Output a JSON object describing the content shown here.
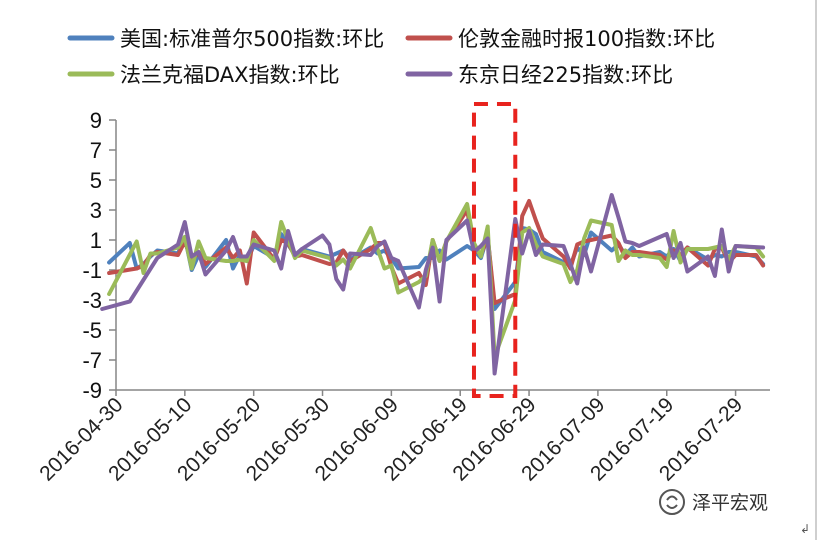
{
  "chart_data": {
    "type": "line",
    "title": "",
    "xlabel": "",
    "ylabel": "",
    "ylim": [
      -9,
      9
    ],
    "yticks": [
      9,
      7,
      5,
      3,
      1,
      -1,
      -3,
      -5,
      -7,
      -9
    ],
    "xlim": [
      "2016-04-30",
      "2016-08-03"
    ],
    "xticks": [
      "2016-04-30",
      "2016-05-10",
      "2016-05-20",
      "2016-05-30",
      "2016-06-09",
      "2016-06-19",
      "2016-06-29",
      "2016-07-09",
      "2016-07-19",
      "2016-07-29"
    ],
    "grid": false,
    "legend_position": "top",
    "highlight": {
      "x_range": [
        "2016-06-21",
        "2016-06-27"
      ],
      "style": "red dashed box"
    },
    "series": [
      {
        "name": "美国:标准普尔500指数:环比",
        "color": "#4F81BD",
        "points": [
          [
            "2016-04-29",
            -0.5
          ],
          [
            "2016-05-02",
            0.8
          ],
          [
            "2016-05-03",
            -0.9
          ],
          [
            "2016-05-04",
            -0.6
          ],
          [
            "2016-05-05",
            -0.1
          ],
          [
            "2016-05-06",
            0.3
          ],
          [
            "2016-05-09",
            0.1
          ],
          [
            "2016-05-10",
            1.2
          ],
          [
            "2016-05-11",
            -1.0
          ],
          [
            "2016-05-12",
            0.0
          ],
          [
            "2016-05-13",
            -0.8
          ],
          [
            "2016-05-16",
            1.0
          ],
          [
            "2016-05-17",
            -0.9
          ],
          [
            "2016-05-18",
            0.0
          ],
          [
            "2016-05-19",
            -0.4
          ],
          [
            "2016-05-20",
            0.6
          ],
          [
            "2016-05-23",
            -0.2
          ],
          [
            "2016-05-24",
            1.4
          ],
          [
            "2016-05-25",
            0.7
          ],
          [
            "2016-05-26",
            0.0
          ],
          [
            "2016-05-27",
            0.4
          ],
          [
            "2016-05-31",
            -0.1
          ],
          [
            "2016-06-01",
            0.1
          ],
          [
            "2016-06-02",
            0.3
          ],
          [
            "2016-06-03",
            -0.3
          ],
          [
            "2016-06-06",
            0.5
          ],
          [
            "2016-06-07",
            0.1
          ],
          [
            "2016-06-08",
            0.3
          ],
          [
            "2016-06-09",
            -0.2
          ],
          [
            "2016-06-10",
            -0.9
          ],
          [
            "2016-06-13",
            -0.8
          ],
          [
            "2016-06-14",
            -0.2
          ],
          [
            "2016-06-15",
            -0.2
          ],
          [
            "2016-06-16",
            0.3
          ],
          [
            "2016-06-17",
            -0.3
          ],
          [
            "2016-06-20",
            0.6
          ],
          [
            "2016-06-21",
            0.3
          ],
          [
            "2016-06-22",
            -0.2
          ],
          [
            "2016-06-23",
            1.3
          ],
          [
            "2016-06-24",
            -3.6
          ],
          [
            "2016-06-27",
            -1.8
          ],
          [
            "2016-06-28",
            1.8
          ],
          [
            "2016-06-29",
            1.7
          ],
          [
            "2016-06-30",
            1.4
          ],
          [
            "2016-07-01",
            0.2
          ],
          [
            "2016-07-05",
            -0.7
          ],
          [
            "2016-07-06",
            0.5
          ],
          [
            "2016-07-07",
            0.0
          ],
          [
            "2016-07-08",
            1.5
          ],
          [
            "2016-07-11",
            0.3
          ],
          [
            "2016-07-12",
            0.7
          ],
          [
            "2016-07-13",
            0.0
          ],
          [
            "2016-07-14",
            0.5
          ],
          [
            "2016-07-15",
            -0.1
          ],
          [
            "2016-07-18",
            0.2
          ],
          [
            "2016-07-19",
            -0.1
          ],
          [
            "2016-07-20",
            0.4
          ],
          [
            "2016-07-21",
            -0.4
          ],
          [
            "2016-07-22",
            0.5
          ],
          [
            "2016-07-25",
            -0.3
          ],
          [
            "2016-07-26",
            0.0
          ],
          [
            "2016-07-27",
            -0.1
          ],
          [
            "2016-07-28",
            0.2
          ],
          [
            "2016-07-29",
            0.2
          ],
          [
            "2016-08-01",
            -0.1
          ],
          [
            "2016-08-02",
            -0.6
          ]
        ]
      },
      {
        "name": "伦敦金融时报100指数:环比",
        "color": "#C0504D",
        "points": [
          [
            "2016-04-29",
            -1.2
          ],
          [
            "2016-05-03",
            -0.9
          ],
          [
            "2016-05-04",
            -0.7
          ],
          [
            "2016-05-05",
            0.0
          ],
          [
            "2016-05-06",
            0.2
          ],
          [
            "2016-05-09",
            0.0
          ],
          [
            "2016-05-10",
            0.9
          ],
          [
            "2016-05-11",
            -0.4
          ],
          [
            "2016-05-12",
            0.2
          ],
          [
            "2016-05-13",
            -0.6
          ],
          [
            "2016-05-16",
            0.5
          ],
          [
            "2016-05-17",
            -0.2
          ],
          [
            "2016-05-18",
            0.3
          ],
          [
            "2016-05-19",
            -1.9
          ],
          [
            "2016-05-20",
            1.5
          ],
          [
            "2016-05-23",
            -0.3
          ],
          [
            "2016-05-24",
            1.0
          ],
          [
            "2016-05-25",
            0.8
          ],
          [
            "2016-05-26",
            -0.1
          ],
          [
            "2016-05-27",
            0.0
          ],
          [
            "2016-05-31",
            -0.6
          ],
          [
            "2016-06-01",
            -0.5
          ],
          [
            "2016-06-02",
            0.3
          ],
          [
            "2016-06-03",
            -0.4
          ],
          [
            "2016-06-06",
            0.4
          ],
          [
            "2016-06-07",
            0.8
          ],
          [
            "2016-06-08",
            0.8
          ],
          [
            "2016-06-09",
            -0.8
          ],
          [
            "2016-06-10",
            -1.9
          ],
          [
            "2016-06-13",
            -1.2
          ],
          [
            "2016-06-14",
            -2.0
          ],
          [
            "2016-06-15",
            1.0
          ],
          [
            "2016-06-16",
            -0.4
          ],
          [
            "2016-06-17",
            0.9
          ],
          [
            "2016-06-20",
            3.0
          ],
          [
            "2016-06-21",
            0.4
          ],
          [
            "2016-06-22",
            0.0
          ],
          [
            "2016-06-23",
            1.2
          ],
          [
            "2016-06-24",
            -3.2
          ],
          [
            "2016-06-27",
            -2.6
          ],
          [
            "2016-06-28",
            2.6
          ],
          [
            "2016-06-29",
            3.6
          ],
          [
            "2016-06-30",
            2.3
          ],
          [
            "2016-07-01",
            1.1
          ],
          [
            "2016-07-04",
            -0.1
          ],
          [
            "2016-07-05",
            -0.9
          ],
          [
            "2016-07-06",
            0.7
          ],
          [
            "2016-07-07",
            0.9
          ],
          [
            "2016-07-08",
            1.0
          ],
          [
            "2016-07-11",
            1.3
          ],
          [
            "2016-07-12",
            0.8
          ],
          [
            "2016-07-13",
            -0.2
          ],
          [
            "2016-07-14",
            0.2
          ],
          [
            "2016-07-15",
            0.2
          ],
          [
            "2016-07-18",
            0.0
          ],
          [
            "2016-07-19",
            -0.3
          ],
          [
            "2016-07-20",
            0.3
          ],
          [
            "2016-07-21",
            0.0
          ],
          [
            "2016-07-22",
            0.5
          ],
          [
            "2016-07-25",
            -0.7
          ],
          [
            "2016-07-26",
            0.4
          ],
          [
            "2016-07-27",
            0.5
          ],
          [
            "2016-07-28",
            -0.5
          ],
          [
            "2016-07-29",
            0.0
          ],
          [
            "2016-08-01",
            0.0
          ],
          [
            "2016-08-02",
            -0.7
          ]
        ]
      },
      {
        "name": "法兰克福DAX指数:环比",
        "color": "#9BBB59",
        "points": [
          [
            "2016-04-29",
            -2.6
          ],
          [
            "2016-05-03",
            0.9
          ],
          [
            "2016-05-04",
            -1.2
          ],
          [
            "2016-05-05",
            0.1
          ],
          [
            "2016-05-06",
            0.1
          ],
          [
            "2016-05-09",
            0.5
          ],
          [
            "2016-05-10",
            1.2
          ],
          [
            "2016-05-11",
            -0.9
          ],
          [
            "2016-05-12",
            0.9
          ],
          [
            "2016-05-13",
            -0.2
          ],
          [
            "2016-05-16",
            -0.4
          ],
          [
            "2016-05-17",
            -0.4
          ],
          [
            "2016-05-18",
            -0.3
          ],
          [
            "2016-05-19",
            -0.4
          ],
          [
            "2016-05-20",
            1.0
          ],
          [
            "2016-05-23",
            -0.4
          ],
          [
            "2016-05-24",
            2.2
          ],
          [
            "2016-05-25",
            1.0
          ],
          [
            "2016-05-26",
            -0.2
          ],
          [
            "2016-05-27",
            0.3
          ],
          [
            "2016-05-31",
            -0.2
          ],
          [
            "2016-06-01",
            -0.7
          ],
          [
            "2016-06-02",
            -0.3
          ],
          [
            "2016-06-03",
            -0.9
          ],
          [
            "2016-06-06",
            1.8
          ],
          [
            "2016-06-07",
            0.4
          ],
          [
            "2016-06-08",
            -0.9
          ],
          [
            "2016-06-09",
            -0.7
          ],
          [
            "2016-06-10",
            -2.5
          ],
          [
            "2016-06-13",
            -1.8
          ],
          [
            "2016-06-14",
            -1.4
          ],
          [
            "2016-06-15",
            1.0
          ],
          [
            "2016-06-16",
            -0.4
          ],
          [
            "2016-06-17",
            0.9
          ],
          [
            "2016-06-20",
            3.4
          ],
          [
            "2016-06-21",
            0.8
          ],
          [
            "2016-06-22",
            -0.1
          ],
          [
            "2016-06-23",
            1.9
          ],
          [
            "2016-06-24",
            -6.8
          ],
          [
            "2016-06-27",
            -3.0
          ],
          [
            "2016-06-28",
            1.5
          ],
          [
            "2016-06-29",
            1.8
          ],
          [
            "2016-06-30",
            0.7
          ],
          [
            "2016-07-01",
            -0.1
          ],
          [
            "2016-07-04",
            -0.6
          ],
          [
            "2016-07-05",
            -1.8
          ],
          [
            "2016-07-06",
            -1.0
          ],
          [
            "2016-07-07",
            1.1
          ],
          [
            "2016-07-08",
            2.3
          ],
          [
            "2016-07-11",
            2.0
          ],
          [
            "2016-07-12",
            -0.4
          ],
          [
            "2016-07-13",
            0.3
          ],
          [
            "2016-07-14",
            0.0
          ],
          [
            "2016-07-15",
            0.0
          ],
          [
            "2016-07-18",
            -0.2
          ],
          [
            "2016-07-19",
            -0.8
          ],
          [
            "2016-07-20",
            1.6
          ],
          [
            "2016-07-21",
            -0.5
          ],
          [
            "2016-07-22",
            0.4
          ],
          [
            "2016-07-25",
            0.4
          ],
          [
            "2016-07-26",
            0.5
          ],
          [
            "2016-07-27",
            0.6
          ],
          [
            "2016-07-28",
            -0.3
          ],
          [
            "2016-07-29",
            0.6
          ],
          [
            "2016-08-01",
            0.5
          ],
          [
            "2016-08-02",
            -0.1
          ]
        ]
      },
      {
        "name": "东京日经225指数:环比",
        "color": "#8064A2",
        "points": [
          [
            "2016-04-28",
            -3.6
          ],
          [
            "2016-05-02",
            -3.1
          ],
          [
            "2016-05-06",
            -0.2
          ],
          [
            "2016-05-09",
            0.7
          ],
          [
            "2016-05-10",
            2.2
          ],
          [
            "2016-05-11",
            -0.1
          ],
          [
            "2016-05-12",
            0.2
          ],
          [
            "2016-05-13",
            -1.3
          ],
          [
            "2016-05-16",
            0.3
          ],
          [
            "2016-05-17",
            1.2
          ],
          [
            "2016-05-18",
            -0.1
          ],
          [
            "2016-05-19",
            -0.1
          ],
          [
            "2016-05-20",
            0.7
          ],
          [
            "2016-05-23",
            0.3
          ],
          [
            "2016-05-24",
            -0.9
          ],
          [
            "2016-05-25",
            1.6
          ],
          [
            "2016-05-26",
            0.0
          ],
          [
            "2016-05-27",
            0.4
          ],
          [
            "2016-05-30",
            1.3
          ],
          [
            "2016-05-31",
            0.7
          ],
          [
            "2016-06-01",
            -1.6
          ],
          [
            "2016-06-02",
            -2.3
          ],
          [
            "2016-06-03",
            0.1
          ],
          [
            "2016-06-06",
            0.0
          ],
          [
            "2016-06-07",
            0.6
          ],
          [
            "2016-06-08",
            0.9
          ],
          [
            "2016-06-09",
            -0.2
          ],
          [
            "2016-06-10",
            -0.4
          ],
          [
            "2016-06-13",
            -3.5
          ],
          [
            "2016-06-14",
            -1.0
          ],
          [
            "2016-06-15",
            0.5
          ],
          [
            "2016-06-16",
            -3.1
          ],
          [
            "2016-06-17",
            1.0
          ],
          [
            "2016-06-20",
            2.3
          ],
          [
            "2016-06-21",
            0.2
          ],
          [
            "2016-06-22",
            0.6
          ],
          [
            "2016-06-23",
            1.1
          ],
          [
            "2016-06-24",
            -7.9
          ],
          [
            "2016-06-27",
            2.4
          ],
          [
            "2016-06-28",
            0.1
          ],
          [
            "2016-06-29",
            1.6
          ],
          [
            "2016-06-30",
            0.0
          ],
          [
            "2016-07-01",
            0.7
          ],
          [
            "2016-07-04",
            0.6
          ],
          [
            "2016-07-05",
            -0.6
          ],
          [
            "2016-07-06",
            -1.9
          ],
          [
            "2016-07-07",
            0.5
          ],
          [
            "2016-07-08",
            -1.1
          ],
          [
            "2016-07-11",
            4.0
          ],
          [
            "2016-07-12",
            2.5
          ],
          [
            "2016-07-13",
            0.9
          ],
          [
            "2016-07-14",
            0.8
          ],
          [
            "2016-07-15",
            0.6
          ],
          [
            "2016-07-19",
            1.4
          ],
          [
            "2016-07-20",
            -0.2
          ],
          [
            "2016-07-21",
            0.8
          ],
          [
            "2016-07-22",
            -1.1
          ],
          [
            "2016-07-25",
            -0.1
          ],
          [
            "2016-07-26",
            -1.4
          ],
          [
            "2016-07-27",
            1.7
          ],
          [
            "2016-07-28",
            -1.1
          ],
          [
            "2016-07-29",
            0.6
          ],
          [
            "2016-08-02",
            0.5
          ]
        ]
      }
    ]
  },
  "watermark": {
    "text": "泽平宏观",
    "icon": "wechat-icon"
  },
  "footer_mark": "↲"
}
